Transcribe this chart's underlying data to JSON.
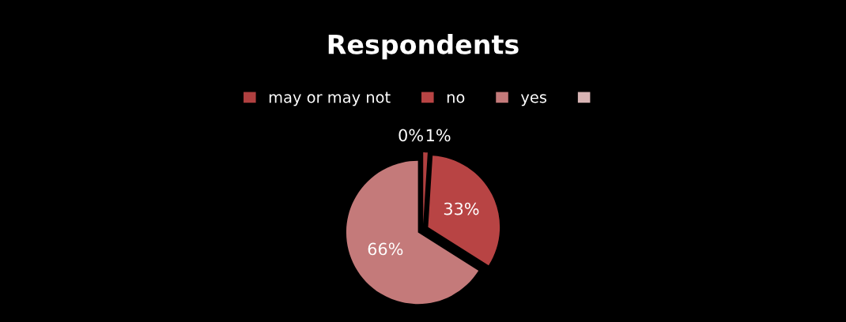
{
  "chart_data": {
    "type": "pie",
    "title": "Respondents",
    "categories": [
      "may or may not",
      "no",
      "yes",
      null
    ],
    "values": [
      1,
      33,
      66,
      0
    ],
    "colors": [
      "#b04040",
      "#b84444",
      "#c47a7a",
      "#d8b4b4"
    ],
    "value_labels": [
      "1%",
      "33%",
      "66%",
      "0%"
    ],
    "legend": "top"
  }
}
